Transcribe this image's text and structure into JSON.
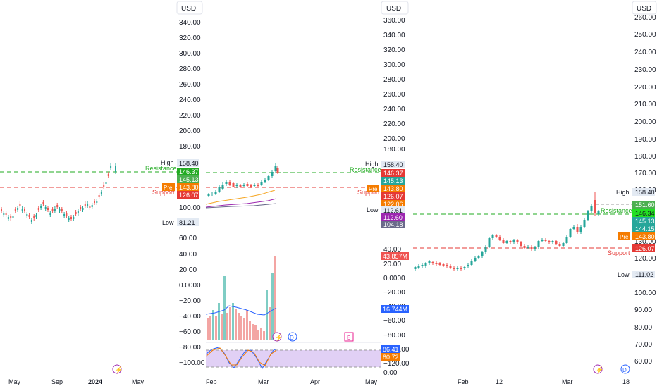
{
  "currency": "USD",
  "panel1": {
    "axis_ticks": [
      "340.00",
      "320.00",
      "300.00",
      "280.00",
      "260.00",
      "240.00",
      "220.00",
      "200.00",
      "180.00",
      "100.00",
      "60.00",
      "40.00",
      "20.00",
      "0.0000",
      "−20.00",
      "−40.00",
      "−60.00",
      "−80.00",
      "−100.00"
    ],
    "high_label": "High",
    "high_value": "158.40",
    "resistance_label": "Resistance",
    "resistance_value": "146.37",
    "value_145": "145.13",
    "pre_label": "Pre",
    "pre_value": "143.80",
    "support_label": "Support",
    "support_value": "126.07",
    "low_label": "Low",
    "low_value": "81.21",
    "time_labels": [
      "May",
      "Sep",
      "2024",
      "May"
    ],
    "event_icon": "lightning-icon"
  },
  "panel2": {
    "axis_ticks": [
      "360.00",
      "340.00",
      "320.00",
      "300.00",
      "280.00",
      "260.00",
      "240.00",
      "220.00",
      "200.00",
      "180.00",
      "40.00",
      "20.00",
      "0.0000",
      "−20.00",
      "−40.00",
      "−60.00",
      "−80.00",
      "−100.00",
      "−120.00",
      "0.00"
    ],
    "high_label": "High",
    "high_value": "158.40",
    "resistance_label": "Resistance",
    "resistance_value": "146.37",
    "value_145": "145.13",
    "pre_label": "Pre",
    "pre_value": "143.80",
    "support_label": "Support",
    "support_value": "126.07",
    "value_122": "122.06",
    "low_label": "Low",
    "low_value": "112.61",
    "ma1_value": "112.60",
    "ma2_value": "104.18",
    "volume_value": "43.857M",
    "volume_ma_value": "16.744M",
    "osc1_value": "86.41",
    "osc2_value": "80.72",
    "time_labels": [
      "Feb",
      "Mar",
      "Apr",
      "May"
    ],
    "event_icons": [
      "lightning-icon",
      "dividend-icon",
      "earnings-icon"
    ],
    "dividend_letter": "D",
    "earnings_letter": "E"
  },
  "panel3": {
    "axis_ticks": [
      "260.00",
      "250.00",
      "240.00",
      "230.00",
      "220.00",
      "210.00",
      "200.00",
      "190.00",
      "180.00",
      "170.00",
      "160.00",
      "130.00",
      "120.00",
      "100.00",
      "90.00",
      "80.00",
      "70.00",
      "60.00"
    ],
    "high_label": "High",
    "high_value": "158.40",
    "value_151": "151.60",
    "resistance_label": "Resistance",
    "resistance_value": "146.34",
    "value_145": "145.13",
    "value_144": "144.15",
    "pre_label": "Pre",
    "pre_value": "143.80",
    "support_label": "Support",
    "support_value": "126.07",
    "low_label": "Low",
    "low_value": "111.02",
    "time_labels": [
      "Feb",
      "12",
      "Mar",
      "18"
    ],
    "event_icons": [
      "lightning-icon",
      "dividend-icon"
    ],
    "dividend_letter": "D"
  },
  "colors": {
    "up": "#26a69a",
    "down": "#ef5350",
    "resistance": "#22ab22",
    "support": "#e53935",
    "pre": "#f57c00",
    "high_bg": "#e3eaf3",
    "volume_ma": "#2962ff",
    "rsi_fill": "#e1d0f5"
  }
}
